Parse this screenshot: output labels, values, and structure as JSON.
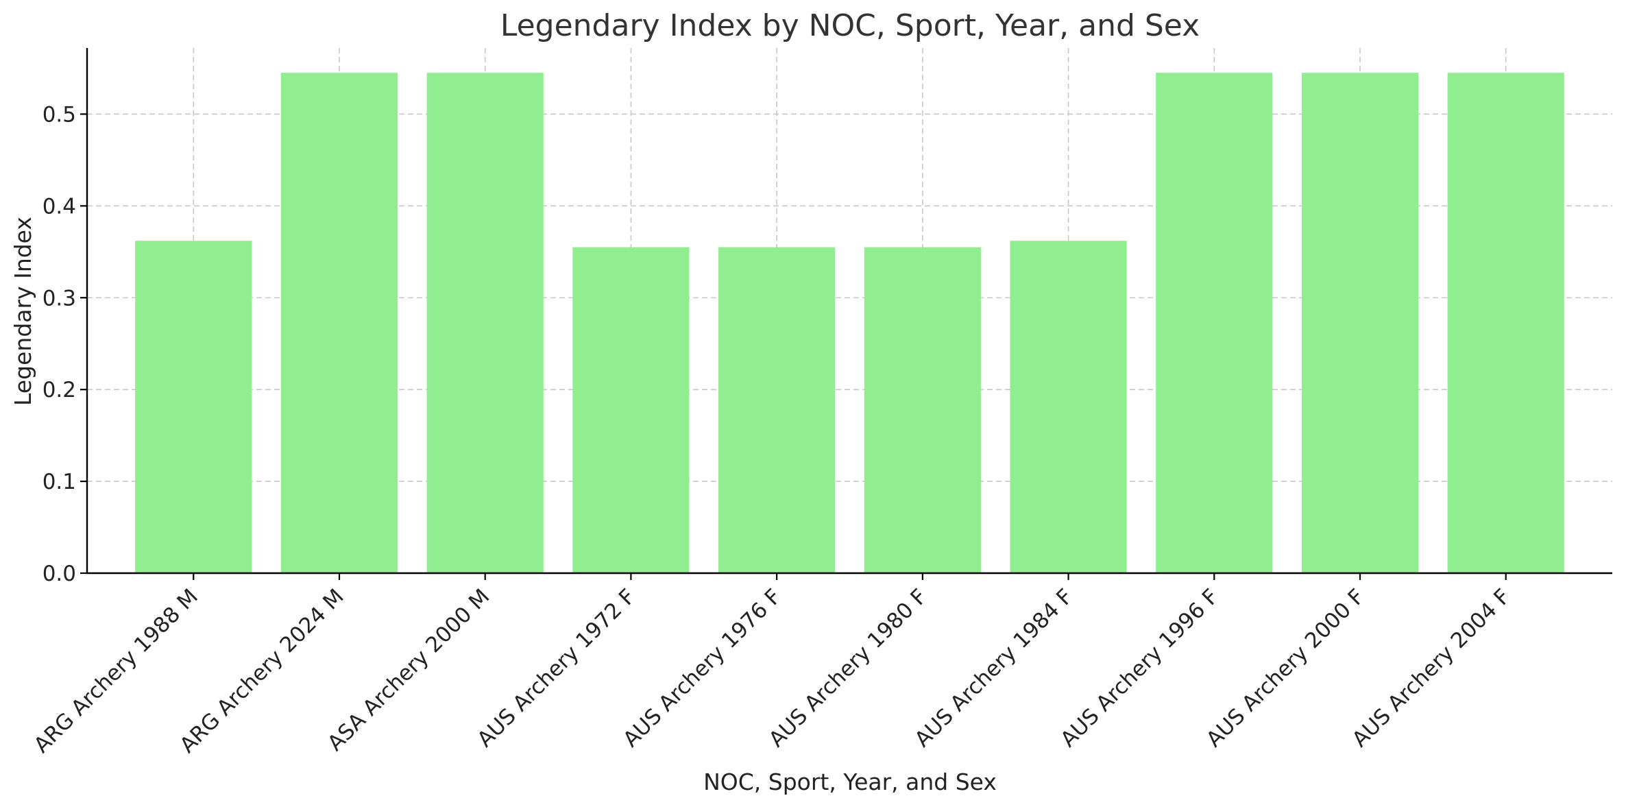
{
  "chart_data": {
    "type": "bar",
    "title": "Legendary Index by NOC, Sport, Year, and Sex",
    "xlabel": "NOC, Sport, Year, and Sex",
    "ylabel": "Legendary Index",
    "categories": [
      "ARG Archery 1988 M",
      "ARG Archery 2024 M",
      "ASA Archery 2000 M",
      "AUS Archery 1972 F",
      "AUS Archery 1976 F",
      "AUS Archery 1980 F",
      "AUS Archery 1984 F",
      "AUS Archery 1996 F",
      "AUS Archery 2000 F",
      "AUS Archery 2004 F"
    ],
    "values": [
      0.362,
      0.545,
      0.545,
      0.355,
      0.355,
      0.355,
      0.362,
      0.545,
      0.545,
      0.545
    ],
    "yticks": [
      "0.0",
      "0.1",
      "0.2",
      "0.3",
      "0.4",
      "0.5"
    ],
    "ylim": [
      0,
      0.572
    ],
    "grid": true,
    "bar_color": "#90ee90"
  }
}
